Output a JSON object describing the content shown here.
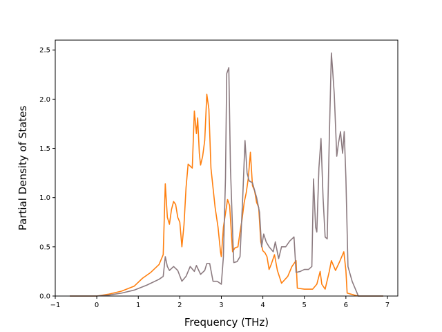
{
  "chart_data": {
    "type": "line",
    "title": "",
    "xlabel": "Frequency (THz)",
    "ylabel": "Partial Density of States",
    "xlim": [
      -1,
      7.25
    ],
    "ylim": [
      0,
      2.6
    ],
    "xticks": [
      -1,
      0,
      1,
      2,
      3,
      4,
      5,
      6,
      7
    ],
    "yticks": [
      0.0,
      0.5,
      1.0,
      1.5,
      2.0,
      2.5
    ],
    "xtick_labels": [
      "−1",
      "0",
      "1",
      "2",
      "3",
      "4",
      "5",
      "6",
      "7"
    ],
    "ytick_labels": [
      "0.0",
      "0.5",
      "1.0",
      "1.5",
      "2.0",
      "2.5"
    ],
    "grid": false,
    "legend": false,
    "series": [
      {
        "color": "#ff7f0e",
        "points": [
          [
            -0.65,
            0
          ],
          [
            0,
            0
          ],
          [
            0.3,
            0.02
          ],
          [
            0.6,
            0.05
          ],
          [
            0.9,
            0.1
          ],
          [
            1.1,
            0.18
          ],
          [
            1.3,
            0.24
          ],
          [
            1.5,
            0.32
          ],
          [
            1.6,
            0.42
          ],
          [
            1.65,
            1.14
          ],
          [
            1.7,
            0.8
          ],
          [
            1.75,
            0.73
          ],
          [
            1.8,
            0.88
          ],
          [
            1.85,
            0.96
          ],
          [
            1.9,
            0.93
          ],
          [
            1.95,
            0.8
          ],
          [
            2.0,
            0.75
          ],
          [
            2.05,
            0.5
          ],
          [
            2.1,
            0.72
          ],
          [
            2.15,
            1.1
          ],
          [
            2.2,
            1.34
          ],
          [
            2.3,
            1.3
          ],
          [
            2.35,
            1.88
          ],
          [
            2.4,
            1.65
          ],
          [
            2.43,
            1.81
          ],
          [
            2.47,
            1.45
          ],
          [
            2.5,
            1.33
          ],
          [
            2.55,
            1.42
          ],
          [
            2.6,
            1.58
          ],
          [
            2.65,
            2.05
          ],
          [
            2.7,
            1.9
          ],
          [
            2.75,
            1.3
          ],
          [
            2.85,
            0.9
          ],
          [
            2.92,
            0.7
          ],
          [
            2.98,
            0.45
          ],
          [
            3.0,
            0.4
          ],
          [
            3.05,
            0.7
          ],
          [
            3.15,
            0.98
          ],
          [
            3.2,
            0.92
          ],
          [
            3.27,
            0.45
          ],
          [
            3.33,
            0.49
          ],
          [
            3.4,
            0.5
          ],
          [
            3.45,
            0.65
          ],
          [
            3.5,
            0.78
          ],
          [
            3.55,
            0.95
          ],
          [
            3.6,
            1.05
          ],
          [
            3.65,
            1.2
          ],
          [
            3.7,
            1.46
          ],
          [
            3.75,
            1.12
          ],
          [
            3.8,
            1.07
          ],
          [
            3.85,
            0.95
          ],
          [
            3.9,
            0.9
          ],
          [
            3.95,
            0.55
          ],
          [
            4.0,
            0.46
          ],
          [
            4.05,
            0.44
          ],
          [
            4.1,
            0.4
          ],
          [
            4.15,
            0.27
          ],
          [
            4.2,
            0.32
          ],
          [
            4.28,
            0.42
          ],
          [
            4.35,
            0.26
          ],
          [
            4.45,
            0.13
          ],
          [
            4.6,
            0.2
          ],
          [
            4.7,
            0.3
          ],
          [
            4.8,
            0.36
          ],
          [
            4.83,
            0.08
          ],
          [
            5.0,
            0.07
          ],
          [
            5.2,
            0.07
          ],
          [
            5.3,
            0.12
          ],
          [
            5.38,
            0.25
          ],
          [
            5.42,
            0.12
          ],
          [
            5.5,
            0.07
          ],
          [
            5.6,
            0.25
          ],
          [
            5.65,
            0.36
          ],
          [
            5.75,
            0.26
          ],
          [
            5.85,
            0.35
          ],
          [
            5.95,
            0.45
          ],
          [
            6.0,
            0.26
          ],
          [
            6.03,
            0.03
          ],
          [
            6.2,
            0.01
          ],
          [
            6.3,
            0
          ],
          [
            6.9,
            0
          ]
        ]
      },
      {
        "color": "#8c7b80",
        "points": [
          [
            -0.65,
            0
          ],
          [
            0,
            0
          ],
          [
            0.3,
            0.01
          ],
          [
            0.6,
            0.03
          ],
          [
            0.9,
            0.06
          ],
          [
            1.2,
            0.11
          ],
          [
            1.5,
            0.17
          ],
          [
            1.6,
            0.2
          ],
          [
            1.65,
            0.4
          ],
          [
            1.7,
            0.3
          ],
          [
            1.75,
            0.26
          ],
          [
            1.85,
            0.3
          ],
          [
            1.95,
            0.26
          ],
          [
            2.05,
            0.15
          ],
          [
            2.15,
            0.2
          ],
          [
            2.25,
            0.3
          ],
          [
            2.35,
            0.25
          ],
          [
            2.4,
            0.31
          ],
          [
            2.5,
            0.22
          ],
          [
            2.6,
            0.26
          ],
          [
            2.65,
            0.33
          ],
          [
            2.72,
            0.33
          ],
          [
            2.8,
            0.15
          ],
          [
            2.9,
            0.15
          ],
          [
            3.0,
            0.12
          ],
          [
            3.05,
            0.4
          ],
          [
            3.1,
            1.2
          ],
          [
            3.13,
            2.26
          ],
          [
            3.18,
            2.32
          ],
          [
            3.22,
            1.3
          ],
          [
            3.28,
            0.55
          ],
          [
            3.3,
            0.34
          ],
          [
            3.38,
            0.35
          ],
          [
            3.45,
            0.4
          ],
          [
            3.52,
            1.05
          ],
          [
            3.57,
            1.58
          ],
          [
            3.62,
            1.25
          ],
          [
            3.67,
            1.17
          ],
          [
            3.75,
            1.15
          ],
          [
            3.85,
            1.0
          ],
          [
            3.92,
            0.85
          ],
          [
            3.97,
            0.5
          ],
          [
            4.02,
            0.63
          ],
          [
            4.08,
            0.55
          ],
          [
            4.15,
            0.5
          ],
          [
            4.25,
            0.45
          ],
          [
            4.3,
            0.55
          ],
          [
            4.38,
            0.38
          ],
          [
            4.45,
            0.5
          ],
          [
            4.55,
            0.5
          ],
          [
            4.65,
            0.56
          ],
          [
            4.75,
            0.6
          ],
          [
            4.8,
            0.24
          ],
          [
            4.9,
            0.25
          ],
          [
            5.0,
            0.27
          ],
          [
            5.1,
            0.27
          ],
          [
            5.18,
            0.3
          ],
          [
            5.22,
            1.19
          ],
          [
            5.27,
            0.7
          ],
          [
            5.3,
            0.65
          ],
          [
            5.35,
            1.3
          ],
          [
            5.4,
            1.6
          ],
          [
            5.45,
            1.0
          ],
          [
            5.5,
            0.6
          ],
          [
            5.55,
            0.58
          ],
          [
            5.6,
            1.6
          ],
          [
            5.65,
            2.47
          ],
          [
            5.68,
            2.3
          ],
          [
            5.72,
            2.05
          ],
          [
            5.78,
            1.42
          ],
          [
            5.82,
            1.55
          ],
          [
            5.87,
            1.67
          ],
          [
            5.92,
            1.45
          ],
          [
            5.96,
            1.67
          ],
          [
            6.0,
            1.2
          ],
          [
            6.05,
            0.3
          ],
          [
            6.15,
            0.15
          ],
          [
            6.25,
            0.05
          ],
          [
            6.3,
            0
          ],
          [
            6.9,
            0
          ]
        ]
      }
    ]
  }
}
